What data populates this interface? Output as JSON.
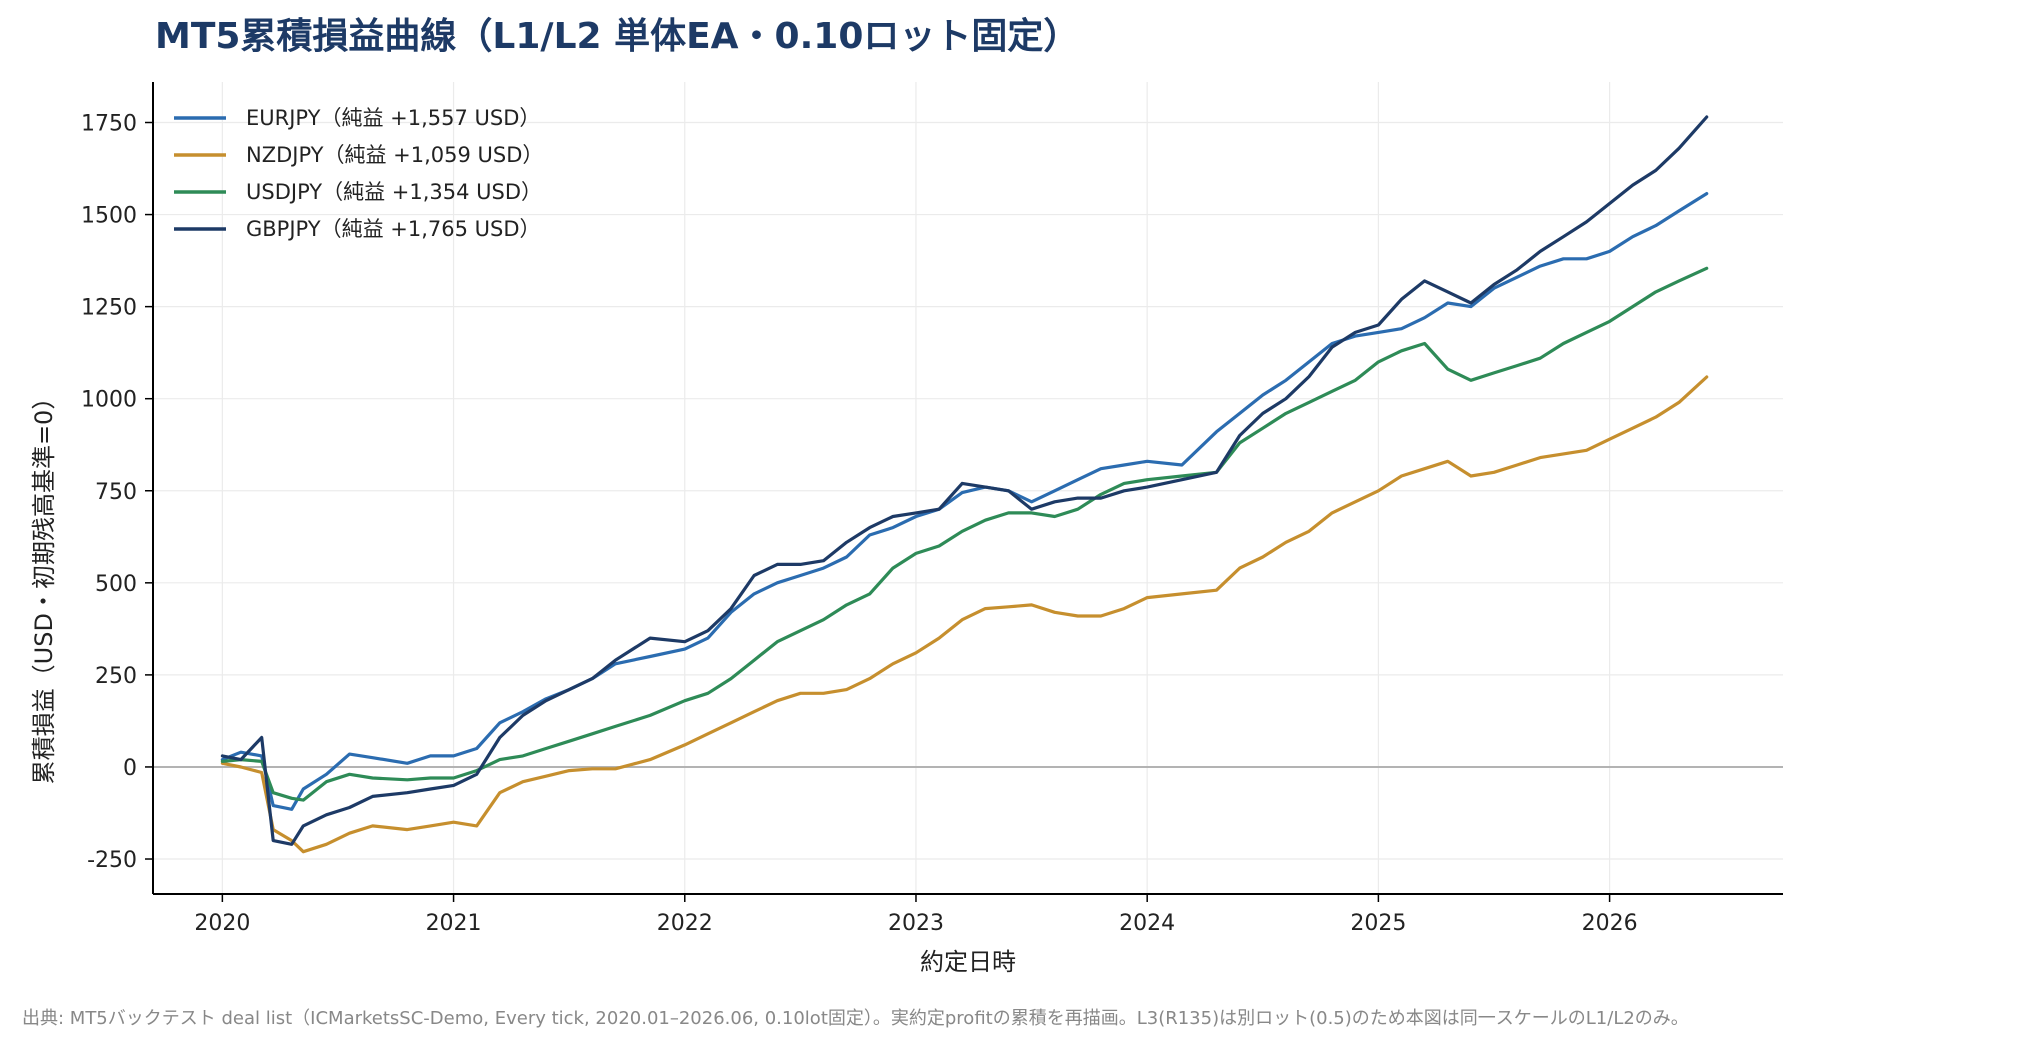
{
  "chart_data": {
    "type": "line",
    "title": "MT5累積損益曲線（L1/L2 単体EA・0.10ロット固定）",
    "xlabel": "約定日時",
    "ylabel": "累積損益（USD・初期残高基準=0）",
    "xlim": [
      2019.7,
      2026.75
    ],
    "ylim": [
      -345,
      1860
    ],
    "x_ticks": [
      2020,
      2021,
      2022,
      2023,
      2024,
      2025,
      2026
    ],
    "x_tick_labels": [
      "2020",
      "2021",
      "2022",
      "2023",
      "2024",
      "2025",
      "2026"
    ],
    "y_ticks": [
      -250,
      0,
      250,
      500,
      750,
      1000,
      1250,
      1500,
      1750
    ],
    "y_tick_labels": [
      "-250",
      "0",
      "250",
      "500",
      "750",
      "1000",
      "1250",
      "1500",
      "1750"
    ],
    "grid": true,
    "legend_position": "top-left",
    "footer": "出典: MT5バックテスト deal list（ICMarketsSC-Demo, Every tick, 2020.01–2026.06, 0.10lot固定）。実約定profitの累積を再描画。L3(R135)は別ロット(0.5)のため本図は同一スケールのL1/L2のみ。",
    "series": [
      {
        "name": "EURJPY（純益 +1,557 USD）",
        "color": "#2b6cb0",
        "x": [
          2020.0,
          2020.08,
          2020.17,
          2020.22,
          2020.3,
          2020.35,
          2020.45,
          2020.55,
          2020.65,
          2020.8,
          2020.9,
          2021.0,
          2021.1,
          2021.2,
          2021.3,
          2021.4,
          2021.5,
          2021.6,
          2021.7,
          2021.85,
          2022.0,
          2022.1,
          2022.2,
          2022.3,
          2022.4,
          2022.5,
          2022.6,
          2022.7,
          2022.8,
          2022.9,
          2023.0,
          2023.1,
          2023.2,
          2023.3,
          2023.4,
          2023.5,
          2023.6,
          2023.7,
          2023.8,
          2023.9,
          2024.0,
          2024.15,
          2024.3,
          2024.4,
          2024.5,
          2024.6,
          2024.7,
          2024.8,
          2024.9,
          2025.0,
          2025.1,
          2025.2,
          2025.3,
          2025.4,
          2025.5,
          2025.6,
          2025.7,
          2025.8,
          2025.9,
          2026.0,
          2026.1,
          2026.2,
          2026.3,
          2026.42
        ],
        "values": [
          20,
          40,
          30,
          -105,
          -115,
          -60,
          -20,
          35,
          25,
          10,
          30,
          30,
          50,
          120,
          150,
          185,
          210,
          240,
          280,
          300,
          320,
          350,
          420,
          470,
          500,
          520,
          540,
          570,
          630,
          650,
          680,
          700,
          745,
          760,
          750,
          720,
          750,
          780,
          810,
          820,
          830,
          820,
          910,
          960,
          1010,
          1050,
          1100,
          1150,
          1170,
          1180,
          1190,
          1220,
          1260,
          1250,
          1300,
          1330,
          1360,
          1380,
          1380,
          1400,
          1440,
          1470,
          1510,
          1557
        ]
      },
      {
        "name": "NZDJPY（純益 +1,059 USD）",
        "color": "#c68f2e",
        "x": [
          2020.0,
          2020.08,
          2020.17,
          2020.22,
          2020.3,
          2020.35,
          2020.45,
          2020.55,
          2020.65,
          2020.8,
          2020.9,
          2021.0,
          2021.1,
          2021.2,
          2021.3,
          2021.4,
          2021.5,
          2021.6,
          2021.7,
          2021.85,
          2022.0,
          2022.1,
          2022.2,
          2022.3,
          2022.4,
          2022.5,
          2022.6,
          2022.7,
          2022.8,
          2022.9,
          2023.0,
          2023.1,
          2023.2,
          2023.3,
          2023.4,
          2023.5,
          2023.6,
          2023.7,
          2023.8,
          2023.9,
          2024.0,
          2024.15,
          2024.3,
          2024.4,
          2024.5,
          2024.6,
          2024.7,
          2024.8,
          2024.9,
          2025.0,
          2025.1,
          2025.2,
          2025.3,
          2025.4,
          2025.5,
          2025.6,
          2025.7,
          2025.8,
          2025.9,
          2026.0,
          2026.1,
          2026.2,
          2026.3,
          2026.42
        ],
        "values": [
          10,
          0,
          -15,
          -170,
          -200,
          -230,
          -210,
          -180,
          -160,
          -170,
          -160,
          -150,
          -160,
          -70,
          -40,
          -25,
          -10,
          -5,
          -5,
          20,
          60,
          90,
          120,
          150,
          180,
          200,
          200,
          210,
          240,
          280,
          310,
          350,
          400,
          430,
          435,
          440,
          420,
          410,
          410,
          430,
          460,
          470,
          480,
          540,
          570,
          610,
          640,
          690,
          720,
          750,
          790,
          810,
          830,
          790,
          800,
          820,
          840,
          850,
          860,
          890,
          920,
          950,
          990,
          1059
        ]
      },
      {
        "name": "USDJPY（純益 +1,354 USD）",
        "color": "#2e8b57",
        "x": [
          2020.0,
          2020.08,
          2020.17,
          2020.22,
          2020.3,
          2020.35,
          2020.45,
          2020.55,
          2020.65,
          2020.8,
          2020.9,
          2021.0,
          2021.1,
          2021.2,
          2021.3,
          2021.4,
          2021.5,
          2021.6,
          2021.7,
          2021.85,
          2022.0,
          2022.1,
          2022.2,
          2022.3,
          2022.4,
          2022.5,
          2022.6,
          2022.7,
          2022.8,
          2022.9,
          2023.0,
          2023.1,
          2023.2,
          2023.3,
          2023.4,
          2023.5,
          2023.6,
          2023.7,
          2023.8,
          2023.9,
          2024.0,
          2024.15,
          2024.3,
          2024.4,
          2024.5,
          2024.6,
          2024.7,
          2024.8,
          2024.9,
          2025.0,
          2025.1,
          2025.2,
          2025.3,
          2025.4,
          2025.5,
          2025.6,
          2025.7,
          2025.8,
          2025.9,
          2026.0,
          2026.1,
          2026.2,
          2026.3,
          2026.42
        ],
        "values": [
          15,
          20,
          15,
          -70,
          -85,
          -90,
          -40,
          -20,
          -30,
          -35,
          -30,
          -30,
          -10,
          20,
          30,
          50,
          70,
          90,
          110,
          140,
          180,
          200,
          240,
          290,
          340,
          370,
          400,
          440,
          470,
          540,
          580,
          600,
          640,
          670,
          690,
          690,
          680,
          700,
          740,
          770,
          780,
          790,
          800,
          880,
          920,
          960,
          990,
          1020,
          1050,
          1100,
          1130,
          1150,
          1080,
          1050,
          1070,
          1090,
          1110,
          1150,
          1180,
          1210,
          1250,
          1290,
          1320,
          1354
        ]
      },
      {
        "name": "GBPJPY（純益 +1,765 USD）",
        "color": "#1d3a66",
        "x": [
          2020.0,
          2020.08,
          2020.17,
          2020.22,
          2020.3,
          2020.35,
          2020.45,
          2020.55,
          2020.65,
          2020.8,
          2020.9,
          2021.0,
          2021.1,
          2021.2,
          2021.3,
          2021.4,
          2021.5,
          2021.6,
          2021.7,
          2021.85,
          2022.0,
          2022.1,
          2022.2,
          2022.3,
          2022.4,
          2022.5,
          2022.6,
          2022.7,
          2022.8,
          2022.9,
          2023.0,
          2023.1,
          2023.2,
          2023.3,
          2023.4,
          2023.5,
          2023.6,
          2023.7,
          2023.8,
          2023.9,
          2024.0,
          2024.15,
          2024.3,
          2024.4,
          2024.5,
          2024.6,
          2024.7,
          2024.8,
          2024.9,
          2025.0,
          2025.1,
          2025.2,
          2025.3,
          2025.4,
          2025.5,
          2025.6,
          2025.7,
          2025.8,
          2025.9,
          2026.0,
          2026.1,
          2026.2,
          2026.3,
          2026.42
        ],
        "values": [
          30,
          20,
          80,
          -200,
          -210,
          -160,
          -130,
          -110,
          -80,
          -70,
          -60,
          -50,
          -20,
          80,
          140,
          180,
          210,
          240,
          290,
          350,
          340,
          370,
          430,
          520,
          550,
          550,
          560,
          610,
          650,
          680,
          690,
          700,
          770,
          760,
          750,
          700,
          720,
          730,
          730,
          750,
          760,
          780,
          800,
          900,
          960,
          1000,
          1060,
          1140,
          1180,
          1200,
          1270,
          1320,
          1290,
          1260,
          1310,
          1350,
          1400,
          1440,
          1480,
          1530,
          1580,
          1620,
          1680,
          1765
        ]
      }
    ]
  }
}
